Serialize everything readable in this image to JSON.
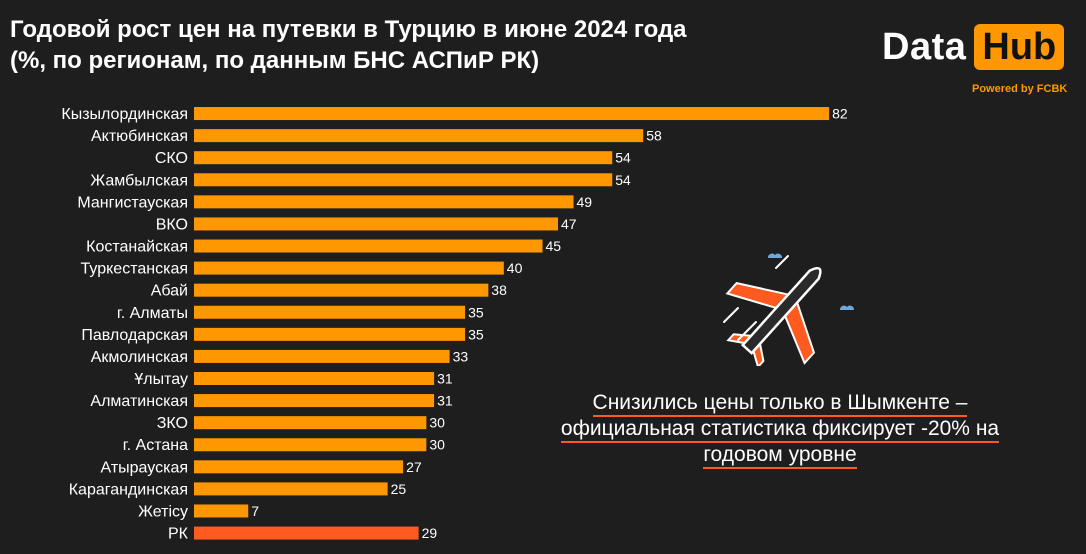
{
  "header": {
    "title_line1": "Годовой рост цен на путевки в Турцию в июне 2024 года",
    "title_line2": "(%, по регионам, по данным БНС АСПиР РК)"
  },
  "logo": {
    "data": "Data",
    "hub": "Hub",
    "powered": "Powered by FCBK"
  },
  "annotation": {
    "line1": "Снизились цены только в Шымкенте –",
    "line2": "официальная статистика фиксирует -20% на",
    "line3": "годовом уровне"
  },
  "colors": {
    "background": "#1e1e1e",
    "bar": "#ff9800",
    "bar_total": "#ff5a1f",
    "label": "#ffffff",
    "underline": "#ff5a1f"
  },
  "chart_data": {
    "type": "bar",
    "orientation": "horizontal",
    "title": "Годовой рост цен на путевки в Турцию в июне 2024 года (%, по регионам, по данным БНС АСПиР РК)",
    "xlabel": "",
    "ylabel": "",
    "xlim": [
      0,
      100
    ],
    "grid": false,
    "categories": [
      "Кызылординская",
      "Актюбинская",
      "СКО",
      "Жамбылская",
      "Мангистауская",
      "ВКО",
      "Костанайская",
      "Туркестанская",
      "Абай",
      "г. Алматы",
      "Павлодарская",
      "Акмолинская",
      "Ұлытау",
      "Алматинская",
      "ЗКО",
      "г. Астана",
      "Атырауская",
      "Карагандинская",
      "Жетісу",
      "РК"
    ],
    "values": [
      82,
      58,
      54,
      54,
      49,
      47,
      45,
      40,
      38,
      35,
      35,
      33,
      31,
      31,
      30,
      30,
      27,
      25,
      7,
      29
    ],
    "highlight_category": "РК"
  }
}
